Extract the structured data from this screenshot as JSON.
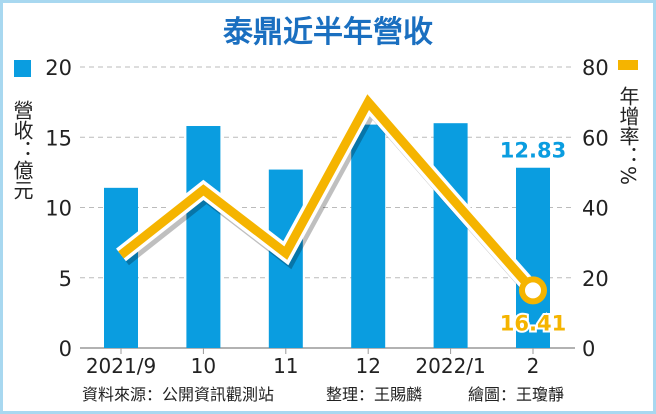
{
  "chart_data": {
    "type": "bar+line",
    "title": "泰鼎近半年營收",
    "categories": [
      "2021/9",
      "10",
      "11",
      "12",
      "2022/1",
      "2"
    ],
    "series": [
      {
        "name": "營收",
        "axis": "left",
        "type": "bar",
        "values": [
          11.4,
          15.8,
          12.7,
          15.9,
          16.0,
          12.83
        ],
        "color": "#0a9de0"
      },
      {
        "name": "年增率",
        "axis": "right",
        "type": "line",
        "values": [
          26.5,
          45,
          27,
          70,
          43,
          16.41
        ],
        "color": "#f5b400"
      }
    ],
    "ylabel_left": "營收：億元",
    "ylabel_right": "年增率：%",
    "ylim_left": [
      0,
      20
    ],
    "ylim_right": [
      0,
      80
    ],
    "yticks_left": [
      0,
      5,
      10,
      15,
      20
    ],
    "yticks_right": [
      0,
      20,
      40,
      60,
      80
    ],
    "grid": true,
    "annotations": [
      {
        "series": 0,
        "index": 5,
        "text": "12.83",
        "color": "#0a9de0"
      },
      {
        "series": 1,
        "index": 5,
        "text": "16.41",
        "color": "#f5b400"
      }
    ],
    "legend": "top-left and top-right beside axes"
  },
  "footer": {
    "source": "資料來源：公開資訊觀測站",
    "compiler": "整理：王賜麟",
    "illustrator": "繪圖：王瓊靜"
  }
}
